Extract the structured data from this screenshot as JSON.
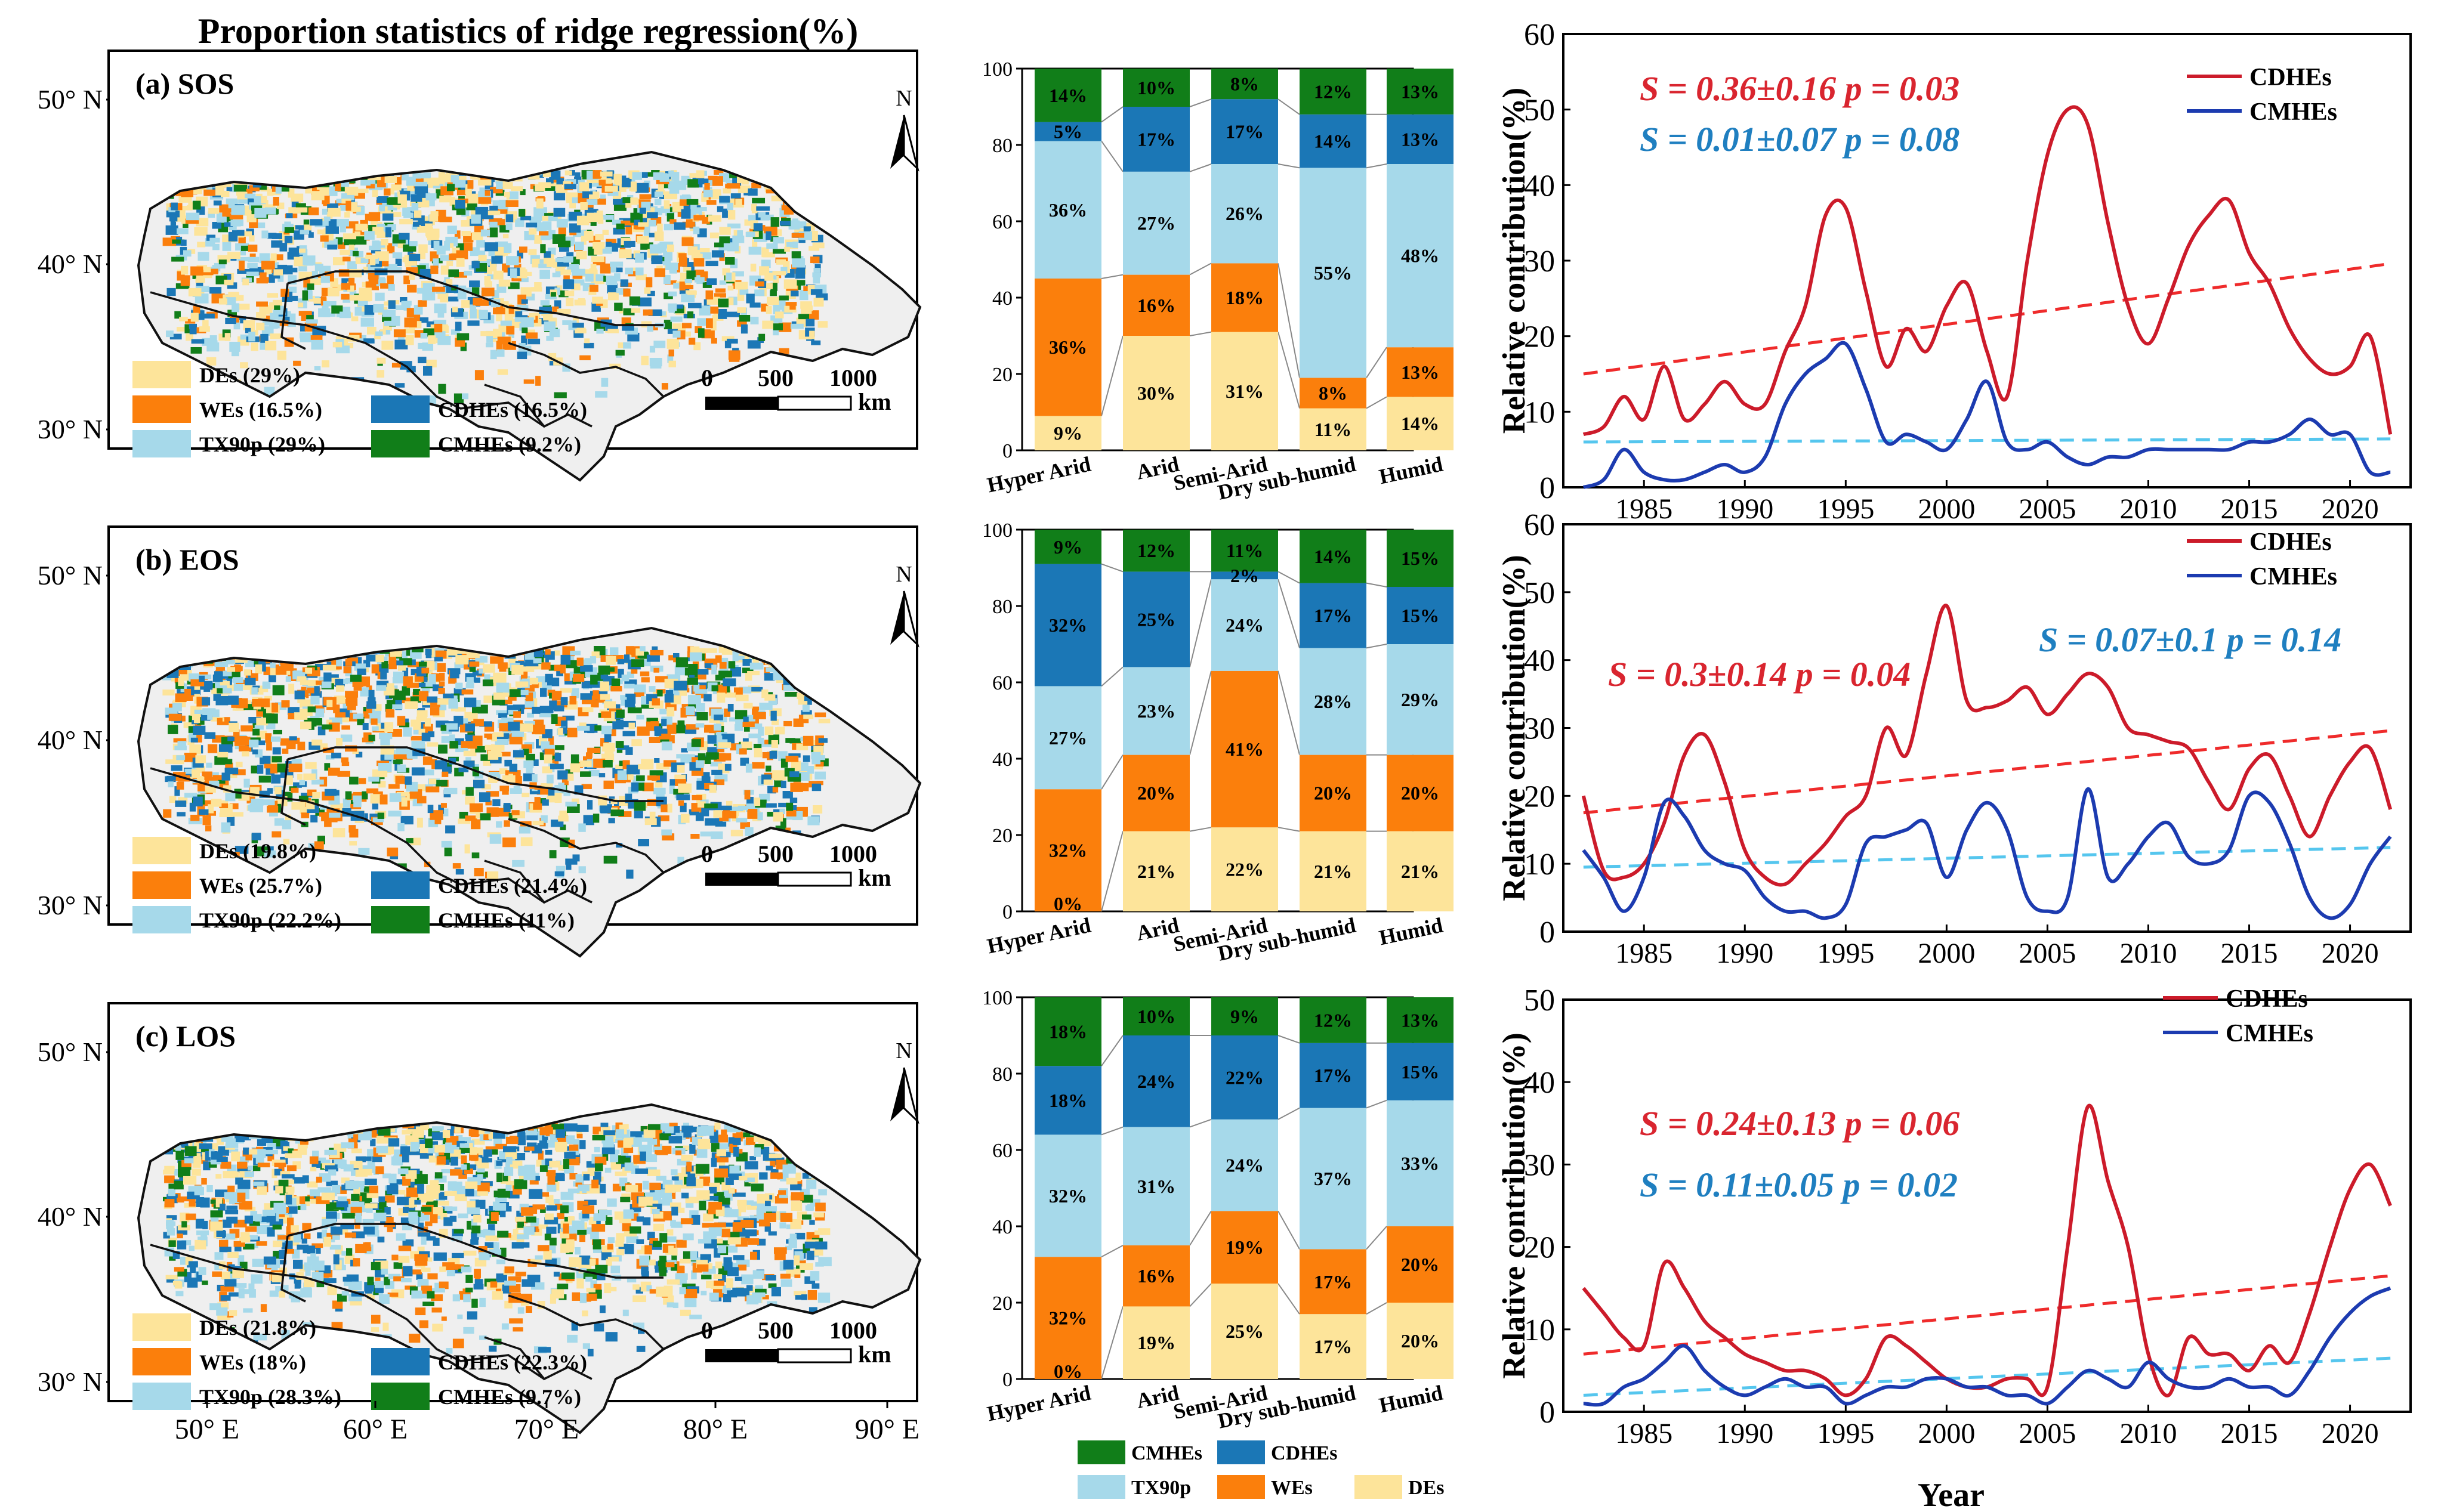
{
  "figure_title": "Proportion statistics of ridge regression(%)",
  "colors": {
    "DEs": "#fde49a",
    "WEs": "#fb7f0c",
    "TX90p": "#a6d9ea",
    "CDHEs": "#1b77b6",
    "CMHEs": "#117e19",
    "cdhe_line": "#cc1b2a",
    "cmhe_line": "#1c3bb0",
    "cdhe_trend": "#ef2b2b",
    "cmhe_trend": "#55c6ee",
    "cdhe_stat": "#d9252f",
    "cmhe_stat": "#1f7fc0",
    "map_land": "#efefef"
  },
  "map": {
    "north_label": "N",
    "lat_labels": [
      "50° N",
      "40° N",
      "30° N"
    ],
    "lon_labels": [
      "50° E",
      "60° E",
      "70° E",
      "80° E",
      "90° E"
    ],
    "scale_ticks": [
      "0",
      "500",
      "1000"
    ],
    "scale_unit": "km"
  },
  "panels": [
    {
      "id": "a",
      "label": "(a) SOS",
      "legend": {
        "DEs": "DEs (29%)",
        "WEs": "WEs (16.5%)",
        "CDHEs": "CDHEs (16.5%)",
        "TX90p": "TX90p (29%)",
        "CMHEs": "CMHEs (9.2%)"
      }
    },
    {
      "id": "b",
      "label": "(b) EOS",
      "legend": {
        "DEs": "DEs (19.8%)",
        "WEs": "WEs (25.7%)",
        "CDHEs": "CDHEs (21.4%)",
        "TX90p": "TX90p (22.2%)",
        "CMHEs": "CMHEs (11%)"
      }
    },
    {
      "id": "c",
      "label": "(c) LOS",
      "legend": {
        "DEs": "DEs (21.8%)",
        "WEs": "WEs (18%)",
        "CDHEs": "CDHEs (22.3%)",
        "TX90p": "TX90p (28.3%)",
        "CMHEs": "CMHEs (9.7%)"
      }
    }
  ],
  "chart_data": [
    {
      "type": "bar",
      "stacked": true,
      "panel": "a",
      "categories": [
        "Hyper Arid",
        "Arid",
        "Semi-Arid",
        "Dry sub-humid",
        "Humid"
      ],
      "series": [
        {
          "name": "DEs",
          "values": [
            9,
            30,
            31,
            11,
            14
          ],
          "labels": [
            "9%",
            "30%",
            "31%",
            "11%",
            "14%"
          ]
        },
        {
          "name": "WEs",
          "values": [
            36,
            16,
            18,
            8,
            13
          ],
          "labels": [
            "36%",
            "16%",
            "18%",
            "8%",
            "13%"
          ]
        },
        {
          "name": "TX90p",
          "values": [
            36,
            27,
            26,
            55,
            48
          ],
          "labels": [
            "36%",
            "27%",
            "26%",
            "55%",
            "48%"
          ]
        },
        {
          "name": "CDHEs",
          "values": [
            5,
            17,
            17,
            14,
            13
          ],
          "labels": [
            "5%",
            "17%",
            "17%",
            "14%",
            "13%"
          ]
        },
        {
          "name": "CMHEs",
          "values": [
            14,
            10,
            8,
            12,
            13
          ],
          "labels": [
            "14%",
            "10%",
            "8%",
            "12%",
            "13%"
          ]
        }
      ],
      "ylim": [
        0,
        100
      ],
      "yticks": [
        "0",
        "20",
        "40",
        "60",
        "80",
        "100"
      ]
    },
    {
      "type": "bar",
      "stacked": true,
      "panel": "b",
      "categories": [
        "Hyper Arid",
        "Arid",
        "Semi-Arid",
        "Dry sub-humid",
        "Humid"
      ],
      "series": [
        {
          "name": "DEs",
          "values": [
            0,
            21,
            22,
            21,
            21
          ],
          "labels": [
            "0%",
            "21%",
            "22%",
            "21%",
            "21%"
          ]
        },
        {
          "name": "WEs",
          "values": [
            32,
            20,
            41,
            20,
            20
          ],
          "labels": [
            "32%",
            "20%",
            "41%",
            "20%",
            "20%"
          ]
        },
        {
          "name": "TX90p",
          "values": [
            27,
            23,
            24,
            28,
            29
          ],
          "labels": [
            "27%",
            "23%",
            "24%",
            "28%",
            "29%"
          ]
        },
        {
          "name": "CDHEs",
          "values": [
            32,
            25,
            2,
            17,
            15
          ],
          "labels": [
            "32%",
            "25%",
            "2%",
            "17%",
            "15%"
          ]
        },
        {
          "name": "CMHEs",
          "values": [
            9,
            12,
            11,
            14,
            15
          ],
          "labels": [
            "9%",
            "12%",
            "11%",
            "14%",
            "15%"
          ]
        }
      ],
      "ylim": [
        0,
        100
      ],
      "yticks": [
        "0",
        "20",
        "40",
        "60",
        "80",
        "100"
      ]
    },
    {
      "type": "bar",
      "stacked": true,
      "panel": "c",
      "categories": [
        "Hyper Arid",
        "Arid",
        "Semi-Arid",
        "Dry sub-humid",
        "Humid"
      ],
      "series": [
        {
          "name": "DEs",
          "values": [
            0,
            19,
            25,
            17,
            20
          ],
          "labels": [
            "0%",
            "19%",
            "25%",
            "17%",
            "20%"
          ]
        },
        {
          "name": "WEs",
          "values": [
            32,
            16,
            19,
            17,
            20
          ],
          "labels": [
            "32%",
            "16%",
            "19%",
            "17%",
            "20%"
          ]
        },
        {
          "name": "TX90p",
          "values": [
            32,
            31,
            24,
            37,
            33
          ],
          "labels": [
            "32%",
            "31%",
            "24%",
            "37%",
            "33%"
          ]
        },
        {
          "name": "CDHEs",
          "values": [
            18,
            24,
            22,
            17,
            15
          ],
          "labels": [
            "18%",
            "24%",
            "22%",
            "17%",
            "15%"
          ]
        },
        {
          "name": "CMHEs",
          "values": [
            18,
            10,
            9,
            12,
            13
          ],
          "labels": [
            "18%",
            "10%",
            "9%",
            "12%",
            "13%"
          ]
        }
      ],
      "ylim": [
        0,
        100
      ],
      "yticks": [
        "0",
        "20",
        "40",
        "60",
        "80",
        "100"
      ]
    },
    {
      "type": "line",
      "panel": "a",
      "ylabel": "Relative contribution(%)",
      "xlabel": "",
      "ylim": [
        0,
        60
      ],
      "yticks": [
        "0",
        "10",
        "20",
        "30",
        "40",
        "50",
        "60"
      ],
      "xticks": [
        "1985",
        "1990",
        "1995",
        "2000",
        "2005",
        "2010",
        "2015",
        "2020"
      ],
      "legend": [
        "CDHEs",
        "CMHEs"
      ],
      "stats": [
        {
          "series": "CDHEs",
          "text": "S = 0.36±0.16  p = 0.03"
        },
        {
          "series": "CMHEs",
          "text": "S = 0.01±0.07  p = 0.08"
        }
      ],
      "x": [
        1982,
        1983,
        1984,
        1985,
        1986,
        1987,
        1988,
        1989,
        1990,
        1991,
        1992,
        1993,
        1994,
        1995,
        1996,
        1997,
        1998,
        1999,
        2000,
        2001,
        2002,
        2003,
        2004,
        2005,
        2006,
        2007,
        2008,
        2009,
        2010,
        2011,
        2012,
        2013,
        2014,
        2015,
        2016,
        2017,
        2018,
        2019,
        2020,
        2021,
        2022
      ],
      "series": [
        {
          "name": "CDHEs",
          "values": [
            7,
            8,
            12,
            9,
            16,
            9,
            11,
            14,
            11,
            11,
            18,
            24,
            36,
            37,
            26,
            16,
            21,
            18,
            24,
            27,
            18,
            12,
            30,
            44,
            50,
            48,
            35,
            24,
            19,
            25,
            32,
            36,
            38,
            31,
            27,
            21,
            17,
            15,
            16,
            20,
            7
          ]
        },
        {
          "name": "CMHEs",
          "values": [
            0,
            1,
            5,
            2,
            1,
            1,
            2,
            3,
            2,
            4,
            11,
            15,
            17,
            19,
            13,
            6,
            7,
            6,
            5,
            9,
            14,
            6,
            5,
            6,
            4,
            3,
            4,
            4,
            5,
            5,
            5,
            5,
            5,
            6,
            6,
            7,
            9,
            7,
            7,
            2,
            2
          ]
        }
      ],
      "trends": [
        {
          "series": "CDHEs",
          "start": 15,
          "end": 29.6
        },
        {
          "series": "CMHEs",
          "start": 6,
          "end": 6.4
        }
      ]
    },
    {
      "type": "line",
      "panel": "b",
      "ylabel": "Relative contribution(%)",
      "xlabel": "",
      "ylim": [
        0,
        60
      ],
      "yticks": [
        "0",
        "10",
        "20",
        "30",
        "40",
        "50",
        "60"
      ],
      "xticks": [
        "1985",
        "1990",
        "1995",
        "2000",
        "2005",
        "2010",
        "2015",
        "2020"
      ],
      "legend": [
        "CDHEs",
        "CMHEs"
      ],
      "stats": [
        {
          "series": "CDHEs",
          "text": "S = 0.3±0.14  p = 0.04"
        },
        {
          "series": "CMHEs",
          "text": "S = 0.07±0.1  p = 0.14"
        }
      ],
      "x": [
        1982,
        1983,
        1984,
        1985,
        1986,
        1987,
        1988,
        1989,
        1990,
        1991,
        1992,
        1993,
        1994,
        1995,
        1996,
        1997,
        1998,
        1999,
        2000,
        2001,
        2002,
        2003,
        2004,
        2005,
        2006,
        2007,
        2008,
        2009,
        2010,
        2011,
        2012,
        2013,
        2014,
        2015,
        2016,
        2017,
        2018,
        2019,
        2020,
        2021,
        2022
      ],
      "series": [
        {
          "name": "CDHEs",
          "values": [
            20,
            9,
            8,
            10,
            16,
            26,
            29,
            22,
            12,
            8,
            7,
            10,
            13,
            17,
            20,
            30,
            26,
            38,
            48,
            34,
            33,
            34,
            36,
            32,
            35,
            38,
            36,
            30,
            29,
            28,
            27,
            22,
            18,
            24,
            26,
            20,
            14,
            20,
            25,
            27,
            18
          ]
        },
        {
          "name": "CMHEs",
          "values": [
            12,
            8,
            3,
            8,
            19,
            17,
            12,
            10,
            9,
            5,
            3,
            3,
            2,
            4,
            13,
            14,
            15,
            16,
            8,
            15,
            19,
            15,
            5,
            3,
            5,
            21,
            8,
            10,
            14,
            16,
            11,
            10,
            12,
            20,
            19,
            13,
            5,
            2,
            4,
            10,
            14
          ]
        }
      ],
      "trends": [
        {
          "series": "CDHEs",
          "start": 17.5,
          "end": 29.6
        },
        {
          "series": "CMHEs",
          "start": 9.5,
          "end": 12.4
        }
      ]
    },
    {
      "type": "line",
      "panel": "c",
      "ylabel": "Relative contribution(%)",
      "xlabel": "Year",
      "ylim": [
        0,
        50
      ],
      "yticks": [
        "0",
        "10",
        "20",
        "30",
        "40",
        "50"
      ],
      "xticks": [
        "1985",
        "1990",
        "1995",
        "2000",
        "2005",
        "2010",
        "2015",
        "2020"
      ],
      "legend": [
        "CDHEs",
        "CMHEs"
      ],
      "stats": [
        {
          "series": "CDHEs",
          "text": "S = 0.24±0.13  p = 0.06"
        },
        {
          "series": "CMHEs",
          "text": "S = 0.11±0.05  p = 0.02"
        }
      ],
      "x": [
        1982,
        1983,
        1984,
        1985,
        1986,
        1987,
        1988,
        1989,
        1990,
        1991,
        1992,
        1993,
        1994,
        1995,
        1996,
        1997,
        1998,
        1999,
        2000,
        2001,
        2002,
        2003,
        2004,
        2005,
        2006,
        2007,
        2008,
        2009,
        2010,
        2011,
        2012,
        2013,
        2014,
        2015,
        2016,
        2017,
        2018,
        2019,
        2020,
        2021,
        2022
      ],
      "series": [
        {
          "name": "CDHEs",
          "values": [
            15,
            12,
            9,
            8,
            18,
            15,
            11,
            9,
            7,
            6,
            5,
            5,
            4,
            2,
            4,
            9,
            8,
            6,
            4,
            3,
            3,
            4,
            4,
            3,
            20,
            37,
            28,
            20,
            7,
            2,
            9,
            7,
            7,
            5,
            8,
            6,
            12,
            20,
            27,
            30,
            25
          ]
        },
        {
          "name": "CMHEs",
          "values": [
            1,
            1,
            3,
            4,
            6,
            8,
            5,
            3,
            2,
            3,
            4,
            3,
            3,
            1,
            2,
            3,
            3,
            4,
            4,
            3,
            3,
            2,
            2,
            1,
            3,
            5,
            4,
            3,
            6,
            4,
            3,
            3,
            4,
            3,
            3,
            2,
            5,
            9,
            12,
            14,
            15
          ]
        }
      ],
      "trends": [
        {
          "series": "CDHEs",
          "start": 7,
          "end": 16.5
        },
        {
          "series": "CMHEs",
          "start": 2,
          "end": 6.5
        }
      ]
    }
  ],
  "bottom_legend": {
    "CMHEs": "CMHEs",
    "CDHEs": "CDHEs",
    "TX90p": "TX90p",
    "WEs": "WEs",
    "DEs": "DEs"
  }
}
